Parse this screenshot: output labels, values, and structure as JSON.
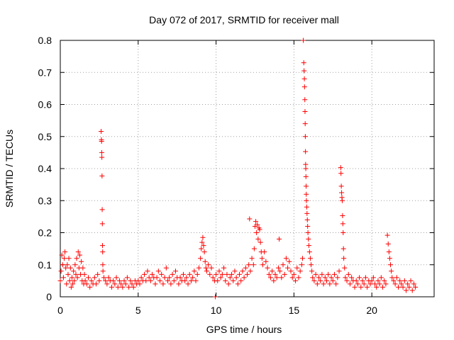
{
  "chart_data": {
    "type": "scatter",
    "title": "Day 072 of 2017, SRMTID for receiver mall",
    "xlabel": "GPS time / hours",
    "ylabel": "SRMTID / TECUs",
    "xlim": [
      0,
      24
    ],
    "ylim": [
      0,
      0.8
    ],
    "grid": true,
    "x_ticks": [
      "0",
      "5",
      "10",
      "15",
      "20"
    ],
    "y_ticks": [
      "0",
      "0.1",
      "0.2",
      "0.3",
      "0.4",
      "0.5",
      "0.6",
      "0.7",
      "0.8"
    ],
    "series": [
      {
        "name": "SRMTID",
        "marker": "+",
        "color": "#ff0000",
        "points": [
          [
            0.0,
            0.05
          ],
          [
            0.05,
            0.08
          ],
          [
            0.1,
            0.13
          ],
          [
            0.15,
            0.1
          ],
          [
            0.2,
            0.06
          ],
          [
            0.25,
            0.12
          ],
          [
            0.3,
            0.14
          ],
          [
            0.35,
            0.09
          ],
          [
            0.4,
            0.04
          ],
          [
            0.45,
            0.1
          ],
          [
            0.5,
            0.07
          ],
          [
            0.55,
            0.12
          ],
          [
            0.6,
            0.05
          ],
          [
            0.65,
            0.09
          ],
          [
            0.7,
            0.03
          ],
          [
            0.75,
            0.06
          ],
          [
            0.8,
            0.04
          ],
          [
            0.85,
            0.08
          ],
          [
            0.9,
            0.05
          ],
          [
            0.95,
            0.1
          ],
          [
            1.0,
            0.07
          ],
          [
            1.05,
            0.12
          ],
          [
            1.1,
            0.06
          ],
          [
            1.15,
            0.14
          ],
          [
            1.2,
            0.09
          ],
          [
            1.25,
            0.13
          ],
          [
            1.3,
            0.07
          ],
          [
            1.35,
            0.11
          ],
          [
            1.4,
            0.05
          ],
          [
            1.45,
            0.09
          ],
          [
            1.5,
            0.04
          ],
          [
            1.55,
            0.07
          ],
          [
            1.6,
            0.05
          ],
          [
            1.7,
            0.04
          ],
          [
            1.8,
            0.06
          ],
          [
            1.9,
            0.03
          ],
          [
            2.0,
            0.05
          ],
          [
            2.1,
            0.04
          ],
          [
            2.2,
            0.06
          ],
          [
            2.3,
            0.04
          ],
          [
            2.4,
            0.07
          ],
          [
            2.5,
            0.05
          ],
          [
            2.62,
            0.516
          ],
          [
            2.64,
            0.49
          ],
          [
            2.65,
            0.485
          ],
          [
            2.66,
            0.45
          ],
          [
            2.67,
            0.435
          ],
          [
            2.68,
            0.377
          ],
          [
            2.69,
            0.272
          ],
          [
            2.7,
            0.228
          ],
          [
            2.71,
            0.16
          ],
          [
            2.72,
            0.14
          ],
          [
            2.73,
            0.1
          ],
          [
            2.74,
            0.08
          ],
          [
            2.8,
            0.06
          ],
          [
            2.9,
            0.05
          ],
          [
            3.0,
            0.04
          ],
          [
            3.1,
            0.06
          ],
          [
            3.2,
            0.05
          ],
          [
            3.3,
            0.03
          ],
          [
            3.4,
            0.05
          ],
          [
            3.5,
            0.04
          ],
          [
            3.6,
            0.06
          ],
          [
            3.7,
            0.03
          ],
          [
            3.8,
            0.05
          ],
          [
            3.9,
            0.04
          ],
          [
            4.0,
            0.03
          ],
          [
            4.1,
            0.05
          ],
          [
            4.2,
            0.04
          ],
          [
            4.3,
            0.06
          ],
          [
            4.4,
            0.03
          ],
          [
            4.5,
            0.05
          ],
          [
            4.6,
            0.04
          ],
          [
            4.7,
            0.03
          ],
          [
            4.8,
            0.05
          ],
          [
            4.9,
            0.04
          ],
          [
            5.0,
            0.05
          ],
          [
            5.1,
            0.04
          ],
          [
            5.2,
            0.06
          ],
          [
            5.3,
            0.05
          ],
          [
            5.4,
            0.07
          ],
          [
            5.5,
            0.05
          ],
          [
            5.6,
            0.08
          ],
          [
            5.7,
            0.06
          ],
          [
            5.8,
            0.05
          ],
          [
            5.9,
            0.07
          ],
          [
            6.0,
            0.06
          ],
          [
            6.1,
            0.04
          ],
          [
            6.2,
            0.06
          ],
          [
            6.3,
            0.08
          ],
          [
            6.4,
            0.05
          ],
          [
            6.5,
            0.07
          ],
          [
            6.6,
            0.04
          ],
          [
            6.7,
            0.06
          ],
          [
            6.8,
            0.09
          ],
          [
            6.9,
            0.05
          ],
          [
            7.0,
            0.06
          ],
          [
            7.1,
            0.04
          ],
          [
            7.2,
            0.07
          ],
          [
            7.3,
            0.05
          ],
          [
            7.4,
            0.08
          ],
          [
            7.5,
            0.06
          ],
          [
            7.6,
            0.04
          ],
          [
            7.7,
            0.06
          ],
          [
            7.8,
            0.05
          ],
          [
            7.9,
            0.07
          ],
          [
            8.0,
            0.05
          ],
          [
            8.1,
            0.06
          ],
          [
            8.2,
            0.04
          ],
          [
            8.3,
            0.07
          ],
          [
            8.4,
            0.05
          ],
          [
            8.5,
            0.06
          ],
          [
            8.6,
            0.08
          ],
          [
            8.7,
            0.05
          ],
          [
            8.8,
            0.07
          ],
          [
            8.9,
            0.09
          ],
          [
            9.0,
            0.12
          ],
          [
            9.05,
            0.15
          ],
          [
            9.1,
            0.17
          ],
          [
            9.15,
            0.185
          ],
          [
            9.2,
            0.16
          ],
          [
            9.25,
            0.14
          ],
          [
            9.3,
            0.11
          ],
          [
            9.35,
            0.09
          ],
          [
            9.4,
            0.08
          ],
          [
            9.5,
            0.1
          ],
          [
            9.6,
            0.07
          ],
          [
            9.7,
            0.09
          ],
          [
            9.8,
            0.06
          ],
          [
            9.9,
            0.05
          ],
          [
            9.95,
            0.0
          ],
          [
            10.0,
            0.07
          ],
          [
            10.1,
            0.05
          ],
          [
            10.2,
            0.08
          ],
          [
            10.3,
            0.06
          ],
          [
            10.4,
            0.07
          ],
          [
            10.5,
            0.09
          ],
          [
            10.6,
            0.05
          ],
          [
            10.7,
            0.07
          ],
          [
            10.8,
            0.04
          ],
          [
            10.9,
            0.06
          ],
          [
            11.0,
            0.07
          ],
          [
            11.1,
            0.05
          ],
          [
            11.2,
            0.08
          ],
          [
            11.3,
            0.06
          ],
          [
            11.4,
            0.04
          ],
          [
            11.5,
            0.07
          ],
          [
            11.6,
            0.05
          ],
          [
            11.7,
            0.08
          ],
          [
            11.8,
            0.06
          ],
          [
            11.9,
            0.09
          ],
          [
            12.0,
            0.07
          ],
          [
            12.1,
            0.1
          ],
          [
            12.15,
            0.243
          ],
          [
            12.2,
            0.08
          ],
          [
            12.3,
            0.12
          ],
          [
            12.4,
            0.1
          ],
          [
            12.45,
            0.15
          ],
          [
            12.5,
            0.22
          ],
          [
            12.55,
            0.235
          ],
          [
            12.6,
            0.2
          ],
          [
            12.65,
            0.225
          ],
          [
            12.7,
            0.18
          ],
          [
            12.75,
            0.215
          ],
          [
            12.8,
            0.21
          ],
          [
            12.85,
            0.17
          ],
          [
            12.9,
            0.14
          ],
          [
            12.95,
            0.12
          ],
          [
            13.0,
            0.1
          ],
          [
            13.1,
            0.14
          ],
          [
            13.2,
            0.11
          ],
          [
            13.3,
            0.09
          ],
          [
            13.4,
            0.07
          ],
          [
            13.5,
            0.06
          ],
          [
            13.6,
            0.08
          ],
          [
            13.7,
            0.05
          ],
          [
            13.8,
            0.07
          ],
          [
            13.9,
            0.06
          ],
          [
            14.0,
            0.09
          ],
          [
            14.05,
            0.18
          ],
          [
            14.1,
            0.08
          ],
          [
            14.2,
            0.06
          ],
          [
            14.3,
            0.1
          ],
          [
            14.4,
            0.07
          ],
          [
            14.5,
            0.12
          ],
          [
            14.6,
            0.09
          ],
          [
            14.7,
            0.11
          ],
          [
            14.8,
            0.08
          ],
          [
            14.9,
            0.06
          ],
          [
            15.0,
            0.07
          ],
          [
            15.1,
            0.05
          ],
          [
            15.2,
            0.09
          ],
          [
            15.3,
            0.06
          ],
          [
            15.4,
            0.08
          ],
          [
            15.5,
            0.1
          ],
          [
            15.55,
            0.12
          ],
          [
            15.6,
            0.8
          ],
          [
            15.63,
            0.73
          ],
          [
            15.65,
            0.705
          ],
          [
            15.67,
            0.68
          ],
          [
            15.68,
            0.655
          ],
          [
            15.7,
            0.615
          ],
          [
            15.71,
            0.578
          ],
          [
            15.72,
            0.54
          ],
          [
            15.73,
            0.5
          ],
          [
            15.74,
            0.453
          ],
          [
            15.75,
            0.413
          ],
          [
            15.76,
            0.4
          ],
          [
            15.77,
            0.375
          ],
          [
            15.78,
            0.345
          ],
          [
            15.79,
            0.32
          ],
          [
            15.8,
            0.3
          ],
          [
            15.82,
            0.28
          ],
          [
            15.84,
            0.26
          ],
          [
            15.86,
            0.24
          ],
          [
            15.88,
            0.22
          ],
          [
            15.9,
            0.2
          ],
          [
            15.93,
            0.18
          ],
          [
            15.96,
            0.16
          ],
          [
            16.0,
            0.14
          ],
          [
            16.05,
            0.12
          ],
          [
            16.1,
            0.1
          ],
          [
            16.15,
            0.08
          ],
          [
            16.2,
            0.06
          ],
          [
            16.3,
            0.05
          ],
          [
            16.4,
            0.07
          ],
          [
            16.5,
            0.04
          ],
          [
            16.6,
            0.06
          ],
          [
            16.7,
            0.05
          ],
          [
            16.8,
            0.07
          ],
          [
            16.9,
            0.04
          ],
          [
            17.0,
            0.06
          ],
          [
            17.1,
            0.05
          ],
          [
            17.2,
            0.07
          ],
          [
            17.3,
            0.04
          ],
          [
            17.4,
            0.06
          ],
          [
            17.5,
            0.05
          ],
          [
            17.6,
            0.07
          ],
          [
            17.7,
            0.04
          ],
          [
            17.8,
            0.06
          ],
          [
            17.9,
            0.08
          ],
          [
            18.0,
            0.403
          ],
          [
            18.02,
            0.385
          ],
          [
            18.04,
            0.345
          ],
          [
            18.06,
            0.325
          ],
          [
            18.08,
            0.31
          ],
          [
            18.1,
            0.3
          ],
          [
            18.12,
            0.253
          ],
          [
            18.14,
            0.228
          ],
          [
            18.16,
            0.2
          ],
          [
            18.18,
            0.15
          ],
          [
            18.2,
            0.12
          ],
          [
            18.25,
            0.09
          ],
          [
            18.3,
            0.06
          ],
          [
            18.4,
            0.05
          ],
          [
            18.5,
            0.07
          ],
          [
            18.6,
            0.04
          ],
          [
            18.7,
            0.06
          ],
          [
            18.8,
            0.05
          ],
          [
            18.9,
            0.03
          ],
          [
            19.0,
            0.05
          ],
          [
            19.1,
            0.04
          ],
          [
            19.2,
            0.06
          ],
          [
            19.3,
            0.03
          ],
          [
            19.4,
            0.05
          ],
          [
            19.5,
            0.04
          ],
          [
            19.6,
            0.06
          ],
          [
            19.7,
            0.03
          ],
          [
            19.8,
            0.05
          ],
          [
            19.9,
            0.04
          ],
          [
            20.0,
            0.05
          ],
          [
            20.1,
            0.06
          ],
          [
            20.2,
            0.04
          ],
          [
            20.3,
            0.03
          ],
          [
            20.4,
            0.05
          ],
          [
            20.5,
            0.04
          ],
          [
            20.6,
            0.06
          ],
          [
            20.7,
            0.03
          ],
          [
            20.8,
            0.05
          ],
          [
            20.9,
            0.04
          ],
          [
            21.0,
            0.192
          ],
          [
            21.05,
            0.165
          ],
          [
            21.1,
            0.14
          ],
          [
            21.15,
            0.12
          ],
          [
            21.2,
            0.1
          ],
          [
            21.25,
            0.08
          ],
          [
            21.3,
            0.06
          ],
          [
            21.4,
            0.05
          ],
          [
            21.5,
            0.04
          ],
          [
            21.6,
            0.06
          ],
          [
            21.7,
            0.03
          ],
          [
            21.8,
            0.05
          ],
          [
            21.9,
            0.04
          ],
          [
            22.0,
            0.03
          ],
          [
            22.1,
            0.05
          ],
          [
            22.2,
            0.02
          ],
          [
            22.3,
            0.04
          ],
          [
            22.4,
            0.03
          ],
          [
            22.5,
            0.05
          ],
          [
            22.6,
            0.02
          ],
          [
            22.7,
            0.04
          ],
          [
            22.8,
            0.03
          ]
        ]
      }
    ]
  }
}
